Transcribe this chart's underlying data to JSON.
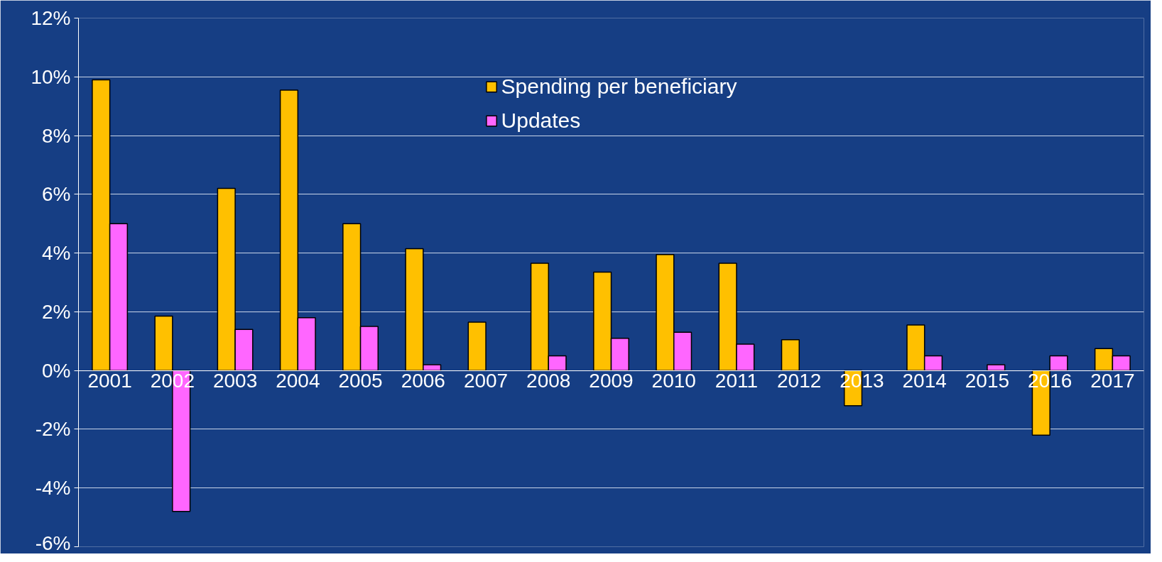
{
  "chart_data": {
    "type": "bar",
    "categories": [
      "2001",
      "2002",
      "2003",
      "2004",
      "2005",
      "2006",
      "2007",
      "2008",
      "2009",
      "2010",
      "2011",
      "2012",
      "2013",
      "2014",
      "2015",
      "2016",
      "2017"
    ],
    "series": [
      {
        "name": "Spending per beneficiary",
        "color": "#ffc000",
        "values": [
          9.9,
          1.85,
          6.2,
          9.55,
          5.0,
          4.15,
          1.65,
          3.65,
          3.35,
          3.95,
          3.65,
          1.05,
          -1.2,
          1.55,
          null,
          -2.2,
          0.75
        ]
      },
      {
        "name": "Updates",
        "color": "#ff66ff",
        "values": [
          5.0,
          -4.8,
          1.4,
          1.8,
          1.5,
          0.2,
          null,
          0.5,
          1.1,
          1.3,
          0.9,
          null,
          null,
          0.5,
          0.2,
          0.5,
          0.5
        ]
      }
    ],
    "ylim": [
      -6,
      12
    ],
    "yticks": [
      {
        "value": -6,
        "label": "-6%"
      },
      {
        "value": -4,
        "label": "-4%"
      },
      {
        "value": -2,
        "label": "-2%"
      },
      {
        "value": 0,
        "label": "0%"
      },
      {
        "value": 2,
        "label": "2%"
      },
      {
        "value": 4,
        "label": "4%"
      },
      {
        "value": 6,
        "label": "6%"
      },
      {
        "value": 8,
        "label": "8%"
      },
      {
        "value": 10,
        "label": "10%"
      },
      {
        "value": 12,
        "label": "12%"
      }
    ],
    "grid": "y",
    "legend": "top"
  }
}
